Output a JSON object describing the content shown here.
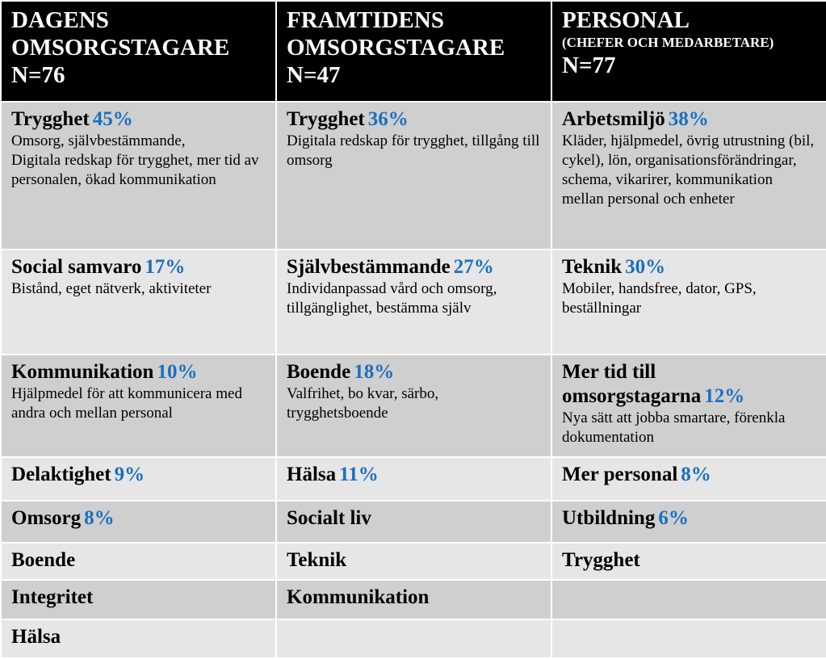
{
  "columns": [
    {
      "title": "DAGENS\nOMSORGSTAGARE",
      "sub": "",
      "n": "N=76"
    },
    {
      "title": "FRAMTIDENS\nOMSORGSTAGARE",
      "sub": "",
      "n": "N=47"
    },
    {
      "title": "PERSONAL",
      "sub": "(CHEFER OCH MEDARBETARE)",
      "n": "N=77"
    }
  ],
  "rows": [
    [
      {
        "title": "Trygghet",
        "pct": "45%",
        "desc": "Omsorg, självbestämmande,\nDigitala redskap för trygghet, mer tid av personalen, ökad kommunikation"
      },
      {
        "title": "Trygghet",
        "pct": "36%",
        "desc": "Digitala redskap för trygghet, tillgång till omsorg"
      },
      {
        "title": "Arbetsmiljö",
        "pct": "38%",
        "desc": "Kläder, hjälpmedel, övrig utrustning (bil, cykel), lön, organisationsförändringar, schema, vikarirer,  kommunikation mellan personal och enheter"
      }
    ],
    [
      {
        "title": "Social samvaro",
        "pct": "17%",
        "desc": "Bistånd, eget nätverk, aktiviteter"
      },
      {
        "title": "Självbestämmande",
        "pct": "27%",
        "desc": "Individanpassad vård och omsorg, tillgänglighet,  bestämma själv"
      },
      {
        "title": "Teknik",
        "pct": "30%",
        "desc": "Mobiler, handsfree, dator, GPS, beställningar"
      }
    ],
    [
      {
        "title": "Kommunikation",
        "pct": "10%",
        "desc": "Hjälpmedel för att kommunicera med andra och mellan personal"
      },
      {
        "title": "Boende",
        "pct": "18%",
        "desc": "Valfrihet, bo kvar, särbo, trygghetsboende"
      },
      {
        "title": "Mer tid till\nomsorgstagarna",
        "pct": "12%",
        "desc": "Nya sätt att jobba smartare, förenkla dokumentation"
      }
    ],
    [
      {
        "title": "Delaktighet",
        "pct": "9%",
        "desc": ""
      },
      {
        "title": "Hälsa",
        "pct": "11%",
        "desc": ""
      },
      {
        "title": "Mer personal",
        "pct": "8%",
        "desc": ""
      }
    ],
    [
      {
        "title": "Omsorg",
        "pct": "8%",
        "desc": ""
      },
      {
        "title": "Socialt liv",
        "pct": "",
        "desc": ""
      },
      {
        "title": "Utbildning",
        "pct": "6%",
        "desc": ""
      }
    ],
    [
      {
        "title": "Boende",
        "pct": "",
        "desc": ""
      },
      {
        "title": "Teknik",
        "pct": "",
        "desc": ""
      },
      {
        "title": "Trygghet",
        "pct": "",
        "desc": ""
      }
    ],
    [
      {
        "title": "Integritet",
        "pct": "",
        "desc": ""
      },
      {
        "title": "Kommunikation",
        "pct": "",
        "desc": ""
      },
      {
        "title": "",
        "pct": "",
        "desc": ""
      }
    ],
    [
      {
        "title": "Hälsa",
        "pct": "",
        "desc": ""
      },
      {
        "title": "",
        "pct": "",
        "desc": ""
      },
      {
        "title": "",
        "pct": "",
        "desc": ""
      }
    ]
  ],
  "colors": {
    "header_bg": "#000000",
    "header_text": "#ffffff",
    "row_dark": "#cfcfcf",
    "row_light": "#e6e6e6",
    "percent": "#1a6fc0",
    "border": "#ffffff"
  }
}
